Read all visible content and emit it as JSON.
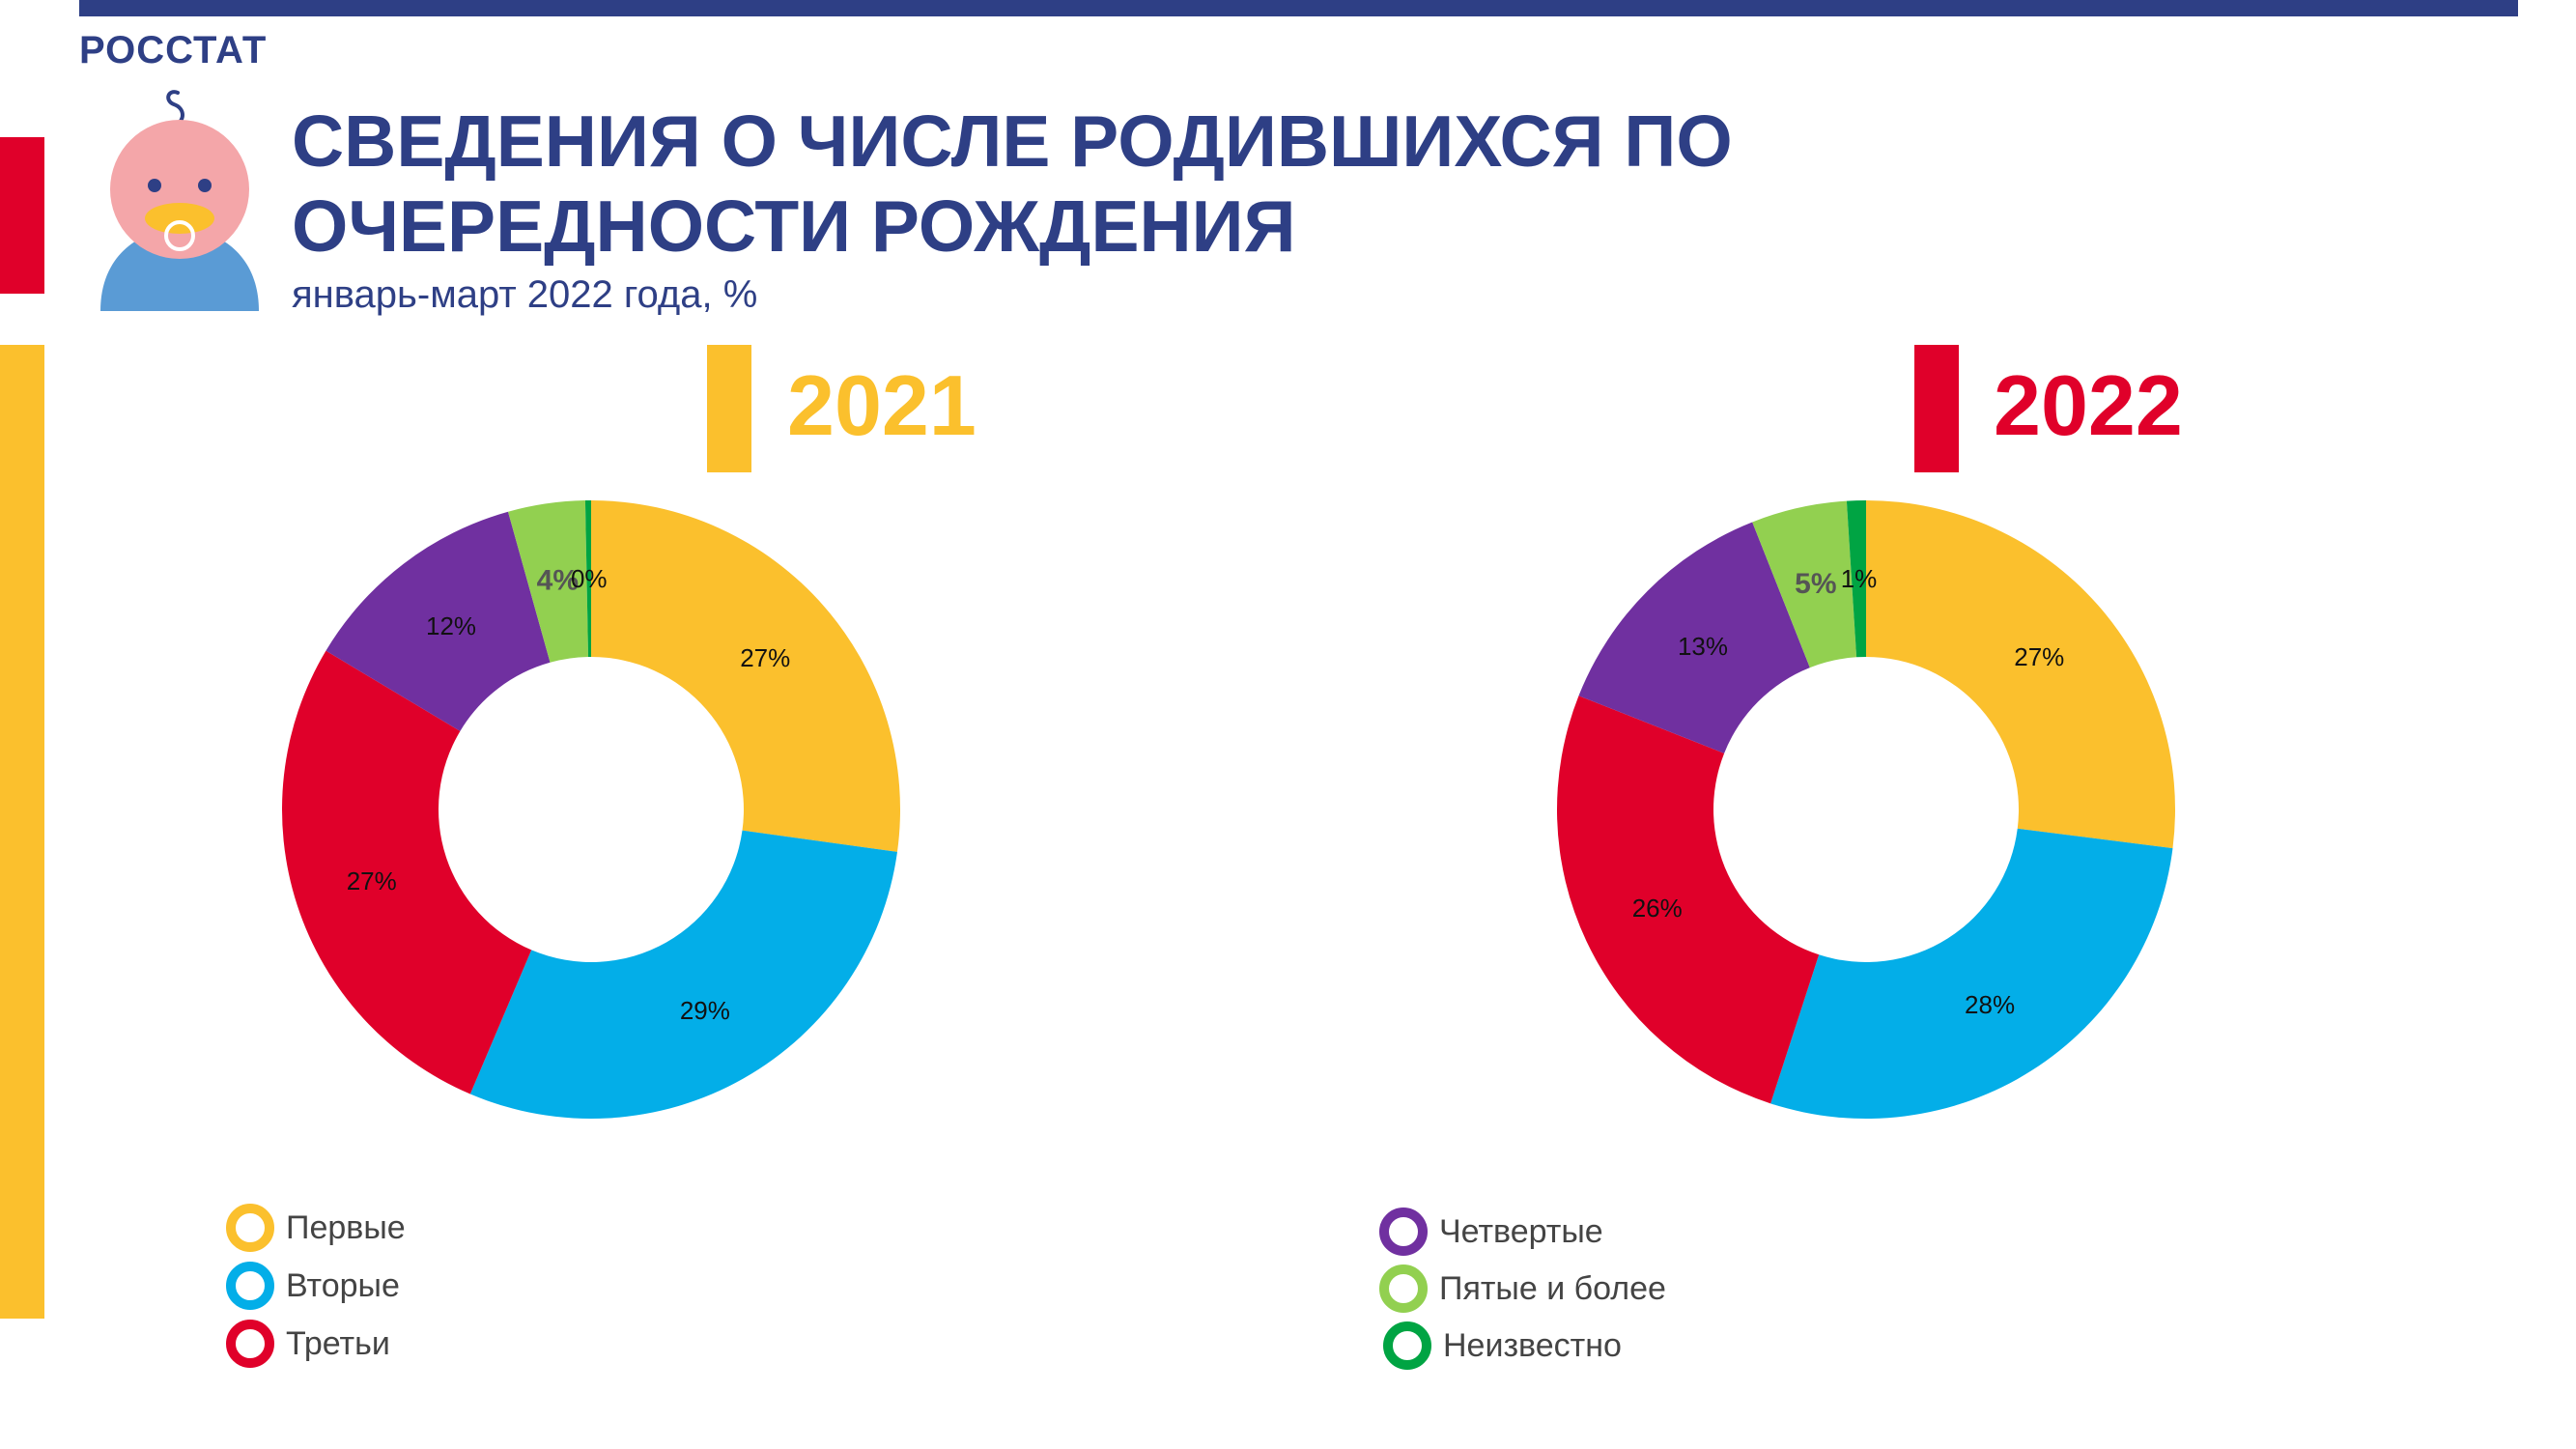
{
  "brand": "РОССТАТ",
  "title_lines": [
    "СВЕДЕНИЯ О ЧИСЛЕ РОДИВШИХСЯ ПО",
    "ОЧЕРЕДНОСТИ РОЖДЕНИЯ"
  ],
  "subtitle": "январь-март 2022 года, %",
  "colors": {
    "Первые": "#fbc02d",
    "Вторые": "#03aee8",
    "Третьи": "#e0002a",
    "Четвертые": "#7030a0",
    "Пятые и более": "#92d050",
    "Неизвестно": "#00a443"
  },
  "chart_data": [
    {
      "type": "pie",
      "title": "2021",
      "title_color": "#fbc02d",
      "categories": [
        "Первые",
        "Вторые",
        "Третьи",
        "Четвертые",
        "Пятые и более",
        "Неизвестно"
      ],
      "values": [
        27,
        29,
        27,
        12,
        4,
        0.3
      ],
      "labels": [
        "27%",
        "29%",
        "27%",
        "12%",
        "4%",
        "0%"
      ]
    },
    {
      "type": "pie",
      "title": "2022",
      "title_color": "#e0002a",
      "categories": [
        "Первые",
        "Вторые",
        "Третьи",
        "Четвертые",
        "Пятые и более",
        "Неизвестно"
      ],
      "values": [
        27,
        28,
        26,
        13,
        5,
        1
      ],
      "labels": [
        "27%",
        "28%",
        "26%",
        "13%",
        "5%",
        "1%"
      ]
    }
  ],
  "legend": [
    [
      "Первые",
      "Вторые",
      "Третьи"
    ],
    [
      "Четвертые",
      "Пятые и более",
      "Неизвестно"
    ]
  ]
}
